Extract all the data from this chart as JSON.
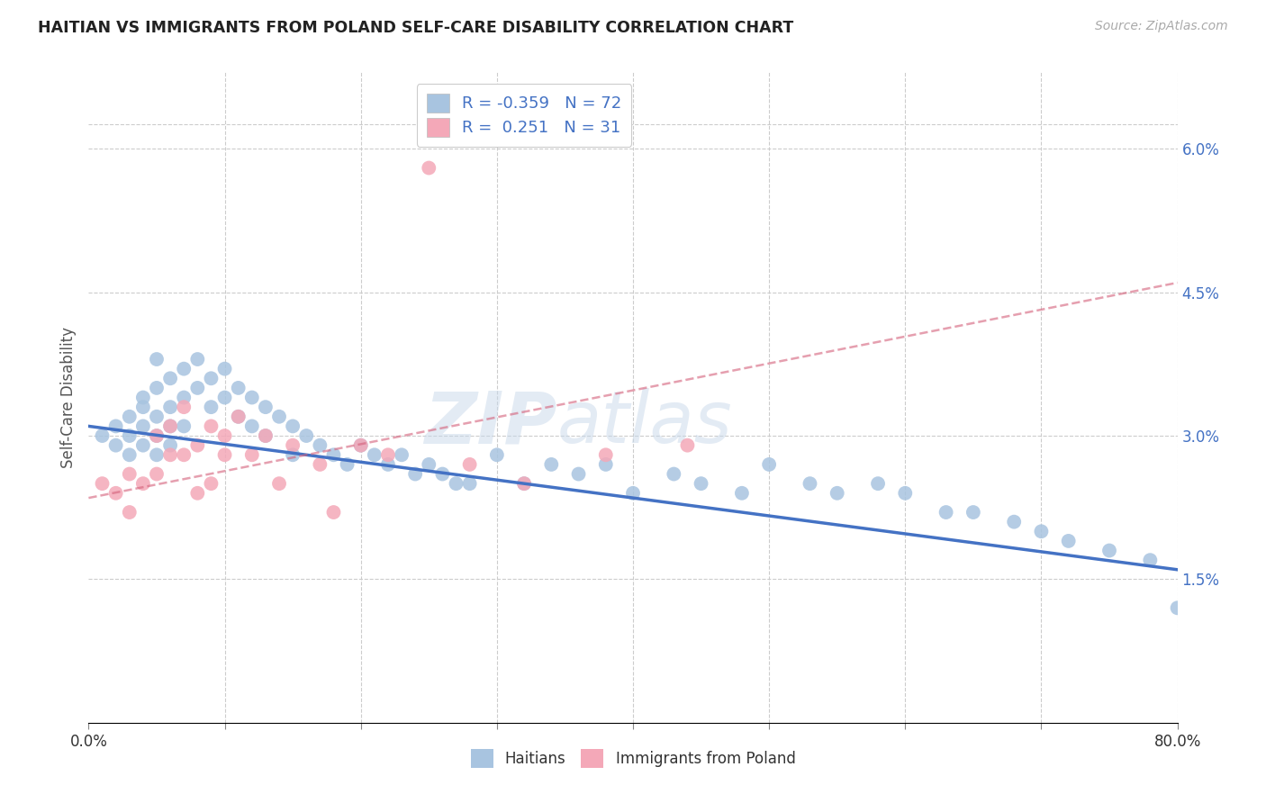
{
  "title": "HAITIAN VS IMMIGRANTS FROM POLAND SELF-CARE DISABILITY CORRELATION CHART",
  "source": "Source: ZipAtlas.com",
  "ylabel": "Self-Care Disability",
  "x_min": 0.0,
  "x_max": 0.8,
  "y_min": 0.0,
  "y_max": 0.068,
  "y_ticks": [
    0.015,
    0.03,
    0.045,
    0.06
  ],
  "y_tick_labels": [
    "1.5%",
    "3.0%",
    "4.5%",
    "6.0%"
  ],
  "x_ticks": [
    0.0,
    0.1,
    0.2,
    0.3,
    0.4,
    0.5,
    0.6,
    0.7,
    0.8
  ],
  "x_tick_labels": [
    "0.0%",
    "",
    "",
    "",
    "",
    "",
    "",
    "",
    "80.0%"
  ],
  "legend_R1": "-0.359",
  "legend_N1": "72",
  "legend_R2": " 0.251",
  "legend_N2": "31",
  "color_haitian": "#a8c4e0",
  "color_poland": "#f4a8b8",
  "color_haitian_line": "#4472C4",
  "color_poland_line": "#d4607a",
  "background_color": "#ffffff",
  "watermark_zip": "ZIP",
  "watermark_atlas": "atlas",
  "haitian_x": [
    0.01,
    0.02,
    0.02,
    0.03,
    0.03,
    0.03,
    0.04,
    0.04,
    0.04,
    0.04,
    0.05,
    0.05,
    0.05,
    0.05,
    0.05,
    0.06,
    0.06,
    0.06,
    0.06,
    0.07,
    0.07,
    0.07,
    0.08,
    0.08,
    0.09,
    0.09,
    0.1,
    0.1,
    0.11,
    0.11,
    0.12,
    0.12,
    0.13,
    0.13,
    0.14,
    0.15,
    0.15,
    0.16,
    0.17,
    0.18,
    0.19,
    0.2,
    0.21,
    0.22,
    0.23,
    0.24,
    0.25,
    0.26,
    0.27,
    0.28,
    0.3,
    0.32,
    0.34,
    0.36,
    0.38,
    0.4,
    0.43,
    0.45,
    0.48,
    0.5,
    0.53,
    0.55,
    0.58,
    0.6,
    0.63,
    0.65,
    0.68,
    0.7,
    0.72,
    0.75,
    0.78,
    0.8
  ],
  "haitian_y": [
    0.03,
    0.029,
    0.031,
    0.028,
    0.032,
    0.03,
    0.034,
    0.031,
    0.033,
    0.029,
    0.038,
    0.035,
    0.032,
    0.03,
    0.028,
    0.036,
    0.033,
    0.031,
    0.029,
    0.037,
    0.034,
    0.031,
    0.038,
    0.035,
    0.036,
    0.033,
    0.037,
    0.034,
    0.035,
    0.032,
    0.034,
    0.031,
    0.033,
    0.03,
    0.032,
    0.031,
    0.028,
    0.03,
    0.029,
    0.028,
    0.027,
    0.029,
    0.028,
    0.027,
    0.028,
    0.026,
    0.027,
    0.026,
    0.025,
    0.025,
    0.028,
    0.025,
    0.027,
    0.026,
    0.027,
    0.024,
    0.026,
    0.025,
    0.024,
    0.027,
    0.025,
    0.024,
    0.025,
    0.024,
    0.022,
    0.022,
    0.021,
    0.02,
    0.019,
    0.018,
    0.017,
    0.012
  ],
  "poland_x": [
    0.01,
    0.02,
    0.03,
    0.03,
    0.04,
    0.05,
    0.05,
    0.06,
    0.06,
    0.07,
    0.07,
    0.08,
    0.08,
    0.09,
    0.09,
    0.1,
    0.1,
    0.11,
    0.12,
    0.13,
    0.14,
    0.15,
    0.17,
    0.18,
    0.2,
    0.22,
    0.25,
    0.28,
    0.32,
    0.38,
    0.44
  ],
  "poland_y": [
    0.025,
    0.024,
    0.026,
    0.022,
    0.025,
    0.03,
    0.026,
    0.031,
    0.028,
    0.033,
    0.028,
    0.029,
    0.024,
    0.031,
    0.025,
    0.03,
    0.028,
    0.032,
    0.028,
    0.03,
    0.025,
    0.029,
    0.027,
    0.022,
    0.029,
    0.028,
    0.058,
    0.027,
    0.025,
    0.028,
    0.029
  ],
  "haitian_line_x0": 0.0,
  "haitian_line_y0": 0.031,
  "haitian_line_x1": 0.8,
  "haitian_line_y1": 0.016,
  "poland_line_x0": 0.0,
  "poland_line_y0": 0.0235,
  "poland_line_x1": 0.8,
  "poland_line_y1": 0.046
}
